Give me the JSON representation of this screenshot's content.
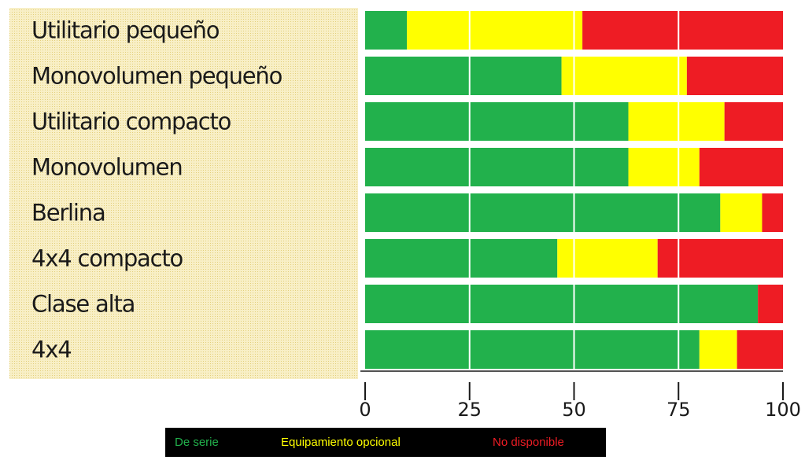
{
  "chart_data": {
    "type": "stacked-barh",
    "categories": [
      "Utilitario pequeño",
      "Monovolumen pequeño",
      "Utilitario compacto",
      "Monovolumen",
      "Berlina",
      "4x4 compacto",
      "Clase alta",
      "4x4"
    ],
    "series": [
      {
        "name": "De serie",
        "color": "#22b14c",
        "values": [
          10,
          47,
          63,
          63,
          85,
          46,
          94,
          80
        ]
      },
      {
        "name": "Equipamiento opcional",
        "color": "#ffff00",
        "values": [
          42,
          30,
          23,
          17,
          10,
          24,
          0,
          9
        ]
      },
      {
        "name": "No disponible",
        "color": "#ee1c24",
        "values": [
          48,
          23,
          14,
          20,
          5,
          30,
          6,
          11
        ]
      }
    ],
    "xlim": [
      0,
      100
    ],
    "xticks": [
      0,
      25,
      50,
      75,
      100
    ],
    "grid": true
  }
}
